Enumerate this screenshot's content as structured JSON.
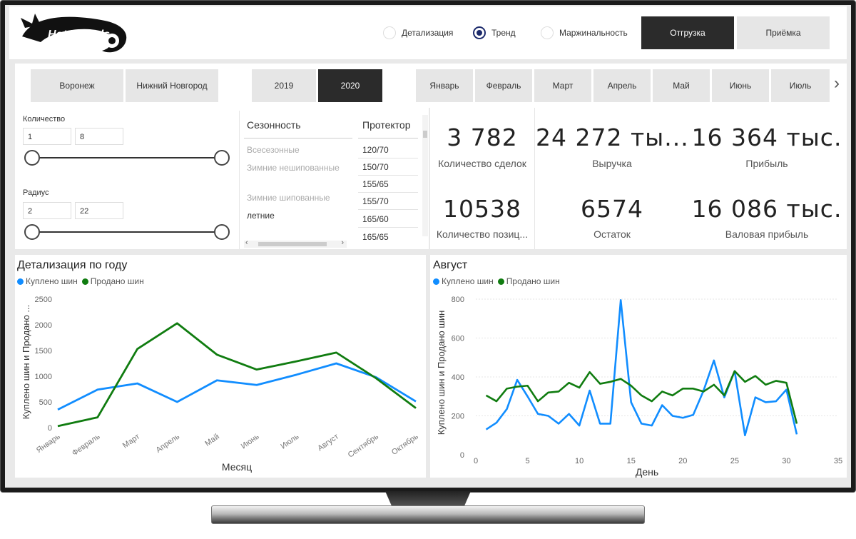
{
  "logo_text": "Hot Wheels",
  "view_options": [
    {
      "label": "Детализация",
      "checked": false
    },
    {
      "label": "Тренд",
      "checked": true
    },
    {
      "label": "Маржинальность",
      "checked": false
    }
  ],
  "mode_buttons": [
    {
      "label": "Отгрузка",
      "active": true
    },
    {
      "label": "Приёмка",
      "active": false
    }
  ],
  "cities": [
    "Воронеж",
    "Нижний Новгород"
  ],
  "years": [
    {
      "label": "2019",
      "active": false
    },
    {
      "label": "2020",
      "active": true
    }
  ],
  "months": [
    "Январь",
    "Февраль",
    "Март",
    "Апрель",
    "Май",
    "Июнь",
    "Июль"
  ],
  "months_next": "›",
  "quantity": {
    "label": "Количество",
    "min": "1",
    "max": "8"
  },
  "radius": {
    "label": "Радиус",
    "min": "2",
    "max": "22"
  },
  "seasonality": {
    "header": "Сезонность",
    "items": [
      {
        "label": "Всесезонные",
        "dim": true
      },
      {
        "label": "Зимние нешипованные",
        "dim": true
      },
      {
        "label": "Зимние шипованные",
        "dim": true
      },
      {
        "label": "летние",
        "dim": false
      }
    ]
  },
  "tread": {
    "header": "Протектор",
    "items": [
      "120/70",
      "150/70",
      "155/65",
      "155/70",
      "165/60",
      "165/65"
    ]
  },
  "scroll": {
    "left": "‹",
    "right": "›"
  },
  "kpis": [
    {
      "value": "3 782",
      "label": "Количество сделок"
    },
    {
      "value": "24 272 ты...",
      "label": "Выручка"
    },
    {
      "value": "16 364 тыс.",
      "label": "Прибыль"
    },
    {
      "value": "10538",
      "label": "Количество позиц..."
    },
    {
      "value": "6574",
      "label": "Остаток"
    },
    {
      "value": "16 086 тыс.",
      "label": "Валовая прибыль"
    }
  ],
  "colors": {
    "bought": "#118dff",
    "sold": "#107c10",
    "accent": "#2b2b2b"
  },
  "chart_data": [
    {
      "type": "line",
      "title": "Детализация по году",
      "xlabel": "Месяц",
      "ylabel": "Куплено шин и Продано ...",
      "categories": [
        "Январь",
        "Февраль",
        "Март",
        "Апрель",
        "Май",
        "Июнь",
        "Июль",
        "Август",
        "Сентябрь",
        "Октябрь"
      ],
      "ylim": [
        0,
        2500
      ],
      "yticks": [
        0,
        500,
        1000,
        1500,
        2000,
        2500
      ],
      "series": [
        {
          "name": "Куплено шин",
          "color": "#118dff",
          "values": [
            350,
            740,
            860,
            500,
            920,
            830,
            1030,
            1250,
            980,
            510
          ]
        },
        {
          "name": "Продано шин",
          "color": "#107c10",
          "values": [
            30,
            200,
            1530,
            2030,
            1420,
            1130,
            1290,
            1460,
            960,
            380
          ]
        }
      ],
      "legend": "top-left",
      "grid": false
    },
    {
      "type": "line",
      "title": "Август",
      "xlabel": "День",
      "ylabel": "Куплено шин и Продано шин",
      "xlim": [
        0,
        35
      ],
      "xticks": [
        0,
        5,
        10,
        15,
        20,
        25,
        30,
        35
      ],
      "ylim": [
        0,
        800
      ],
      "yticks": [
        0,
        200,
        400,
        600,
        800
      ],
      "x": [
        1,
        2,
        3,
        4,
        5,
        6,
        7,
        8,
        9,
        10,
        11,
        12,
        13,
        14,
        15,
        16,
        17,
        18,
        19,
        20,
        21,
        22,
        23,
        24,
        25,
        26,
        27,
        28,
        29,
        30,
        31
      ],
      "series": [
        {
          "name": "Куплено шин",
          "color": "#118dff",
          "values": [
            130,
            165,
            235,
            385,
            300,
            210,
            200,
            160,
            210,
            150,
            330,
            160,
            160,
            795,
            270,
            160,
            150,
            255,
            200,
            190,
            205,
            330,
            485,
            295,
            430,
            100,
            295,
            270,
            275,
            335,
            105
          ]
        },
        {
          "name": "Продано шин",
          "color": "#107c10",
          "values": [
            305,
            275,
            340,
            350,
            355,
            275,
            320,
            325,
            370,
            345,
            425,
            365,
            375,
            390,
            355,
            305,
            275,
            325,
            305,
            340,
            340,
            325,
            360,
            305,
            430,
            375,
            405,
            360,
            380,
            370,
            160
          ]
        }
      ],
      "legend": "top-left",
      "grid": true
    }
  ]
}
